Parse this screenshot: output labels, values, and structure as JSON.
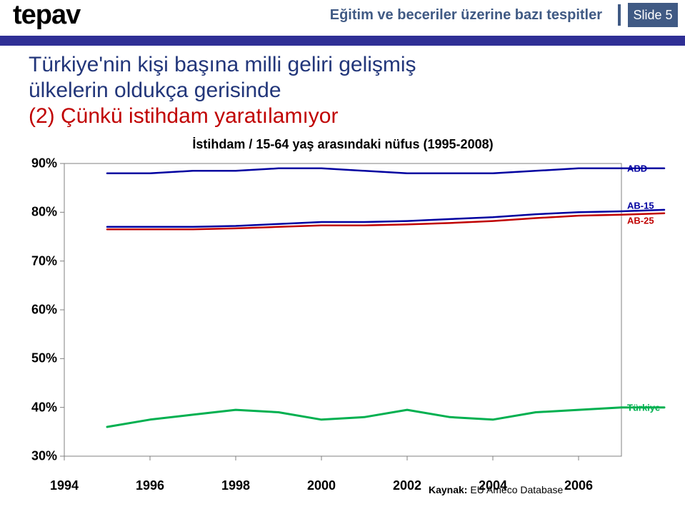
{
  "header": {
    "logo": "tepav",
    "title": "Eğitim ve beceriler üzerine bazı tespitler",
    "slide_no": "Slide 5",
    "accent_color": "#2f2f95",
    "header_text_color": "#405a84",
    "header_box_bg": "#405a84"
  },
  "heading": {
    "line1": "Türkiye'nin kişi başına milli geliri gelişmiş",
    "line2": "ülkelerin oldukça gerisinde",
    "line3": "(2) Çünkü istihdam yaratılamıyor",
    "color_main": "#22367a",
    "color_accent": "#c00000",
    "fontsize": 30
  },
  "chart": {
    "type": "line",
    "title": "İstihdam / 15-64 yaş arasındaki nüfus (1995-2008)",
    "title_fontsize": 18,
    "background_color": "#ffffff",
    "plot_border_color": "#808080",
    "grid": false,
    "x": {
      "min": 1994,
      "max": 2007,
      "ticks": [
        1994,
        1996,
        1998,
        2000,
        2002,
        2004,
        2006
      ],
      "label_fontsize": 18
    },
    "y": {
      "min": 30,
      "max": 90,
      "ticks": [
        30,
        40,
        50,
        60,
        70,
        80,
        90
      ],
      "tick_suffix": "%",
      "label_fontsize": 18
    },
    "series": [
      {
        "name": "ABD",
        "label": "ABD",
        "color": "#0000a0",
        "line_width": 2.5,
        "x": [
          1995,
          1996,
          1997,
          1998,
          1999,
          2000,
          2001,
          2002,
          2003,
          2004,
          2005,
          2006,
          2007,
          2008
        ],
        "y": [
          88,
          88,
          88.5,
          88.5,
          89,
          89,
          88.5,
          88,
          88,
          88,
          88.5,
          89,
          89,
          89
        ]
      },
      {
        "name": "AB-15",
        "label": "AB-15",
        "color": "#0000a0",
        "line_width": 2.5,
        "x": [
          1995,
          1996,
          1997,
          1998,
          1999,
          2000,
          2001,
          2002,
          2003,
          2004,
          2005,
          2006,
          2007,
          2008
        ],
        "y": [
          77,
          77,
          77,
          77.2,
          77.6,
          78,
          78,
          78.2,
          78.6,
          79,
          79.6,
          80,
          80.2,
          80.5
        ]
      },
      {
        "name": "AB-25",
        "label": "AB-25",
        "color": "#c00000",
        "line_width": 2.5,
        "x": [
          1995,
          1996,
          1997,
          1998,
          1999,
          2000,
          2001,
          2002,
          2003,
          2004,
          2005,
          2006,
          2007,
          2008
        ],
        "y": [
          76.5,
          76.5,
          76.5,
          76.7,
          77,
          77.3,
          77.3,
          77.5,
          77.8,
          78.2,
          78.8,
          79.3,
          79.5,
          79.8
        ]
      },
      {
        "name": "Turkiye",
        "label": "Türkiye",
        "color": "#00b050",
        "line_width": 3,
        "x": [
          1995,
          1996,
          1997,
          1998,
          1999,
          2000,
          2001,
          2002,
          2003,
          2004,
          2005,
          2006,
          2007,
          2008
        ],
        "y": [
          36,
          37.5,
          38.5,
          39.5,
          39,
          37.5,
          38,
          39.5,
          38,
          37.5,
          39,
          39.5,
          40,
          40
        ]
      }
    ]
  },
  "source": {
    "label": "Kaynak:",
    "text": "EU Ameco Database",
    "fontsize": 14
  }
}
